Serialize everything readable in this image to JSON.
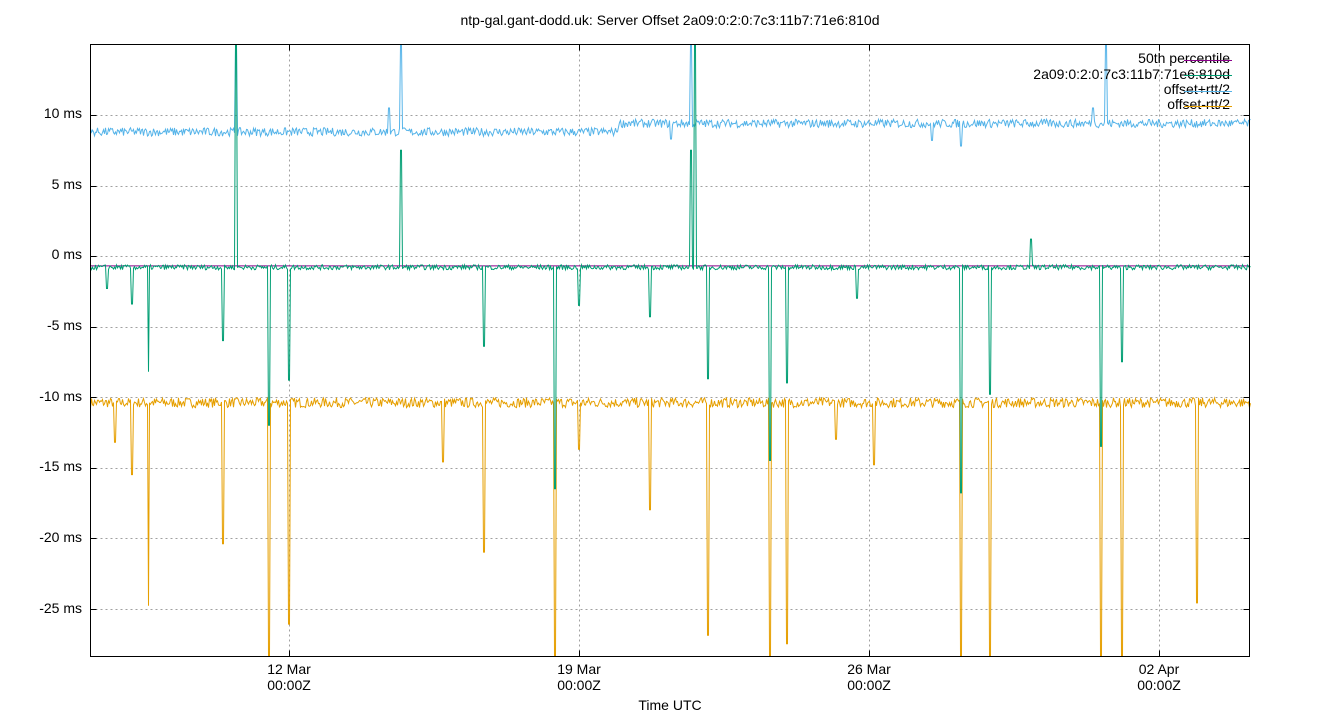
{
  "title": "ntp-gal.gant-dodd.uk: Server Offset 2a09:0:2:0:7c3:11b7:71e6:810d",
  "chart_data": {
    "type": "line",
    "title": "ntp-gal.gant-dodd.uk: Server Offset 2a09:0:2:0:7c3:11b7:71e6:810d",
    "xlabel": "Time UTC",
    "ylabel": "",
    "ylim": [
      -28.4,
      15.0
    ],
    "xlim": [
      "07 Mar ~05:00Z",
      "04 Apr ~05:00Z"
    ],
    "grid": true,
    "legend_position": "top-right",
    "y_ticks": [
      "10 ms",
      "5 ms",
      "0 ms",
      "-5 ms",
      "-10 ms",
      "-15 ms",
      "-20 ms",
      "-25 ms"
    ],
    "y_tick_values": [
      10,
      5,
      0,
      -5,
      -10,
      -15,
      -20,
      -25
    ],
    "x_ticks": [
      {
        "line1": "12 Mar",
        "line2": "00:00Z"
      },
      {
        "line1": "19 Mar",
        "line2": "00:00Z"
      },
      {
        "line1": "26 Mar",
        "line2": "00:00Z"
      },
      {
        "line1": "02 Apr",
        "line2": "00:00Z"
      }
    ],
    "series": [
      {
        "name": "50th percentile",
        "color": "#8b008b",
        "kind": "constant",
        "value": -0.7
      },
      {
        "name": "2a09:0:2:0:7c3:11b7:71e6:810d",
        "color": "#009e73",
        "baseline": -0.8,
        "points_day_offset_ms": [
          [
            0.0,
            -0.8
          ],
          [
            0.4,
            -2.3
          ],
          [
            1.0,
            -3.4
          ],
          [
            1.4,
            -8.2
          ],
          [
            3.2,
            -6.0
          ],
          [
            3.5,
            15.0
          ],
          [
            4.3,
            -12.0
          ],
          [
            4.8,
            -8.8
          ],
          [
            7.5,
            7.5
          ],
          [
            9.5,
            -6.4
          ],
          [
            11.2,
            -16.5
          ],
          [
            11.8,
            -3.5
          ],
          [
            13.5,
            -4.3
          ],
          [
            14.5,
            7.5
          ],
          [
            14.6,
            15.0
          ],
          [
            14.9,
            -8.7
          ],
          [
            16.4,
            -14.5
          ],
          [
            16.8,
            -9.0
          ],
          [
            18.5,
            -3.0
          ],
          [
            21.0,
            -16.8
          ],
          [
            21.7,
            -9.8
          ],
          [
            22.7,
            1.2
          ],
          [
            24.4,
            -13.5
          ],
          [
            24.9,
            -7.5
          ],
          [
            28.0,
            -0.7
          ]
        ]
      },
      {
        "name": "offset+rtt/2",
        "color": "#56b4e9",
        "baseline_start": 8.8,
        "baseline_end": 9.4,
        "points_day_offset_ms": [
          [
            0.0,
            8.8
          ],
          [
            3.5,
            15.0
          ],
          [
            7.2,
            10.5
          ],
          [
            7.5,
            15.0
          ],
          [
            12.7,
            8.8
          ],
          [
            13.0,
            9.5
          ],
          [
            14.0,
            8.3
          ],
          [
            14.5,
            15.0
          ],
          [
            20.3,
            8.2
          ],
          [
            21.0,
            7.8
          ],
          [
            24.2,
            10.5
          ],
          [
            24.5,
            15.0
          ],
          [
            28.0,
            9.4
          ]
        ]
      },
      {
        "name": "offset-rtt/2",
        "color": "#e69f00",
        "baseline": -10.4,
        "points_day_offset_ms": [
          [
            0.0,
            -10.4
          ],
          [
            0.6,
            -13.2
          ],
          [
            1.0,
            -15.5
          ],
          [
            1.4,
            -24.8
          ],
          [
            3.2,
            -20.4
          ],
          [
            4.3,
            -28.4
          ],
          [
            4.8,
            -26.1
          ],
          [
            8.5,
            -14.6
          ],
          [
            9.5,
            -21.0
          ],
          [
            11.2,
            -28.4
          ],
          [
            11.8,
            -13.7
          ],
          [
            13.5,
            -18.0
          ],
          [
            14.9,
            -26.9
          ],
          [
            16.4,
            -28.4
          ],
          [
            16.8,
            -27.5
          ],
          [
            18.0,
            -13.0
          ],
          [
            18.9,
            -14.8
          ],
          [
            21.0,
            -28.4
          ],
          [
            21.7,
            -28.4
          ],
          [
            24.4,
            -28.4
          ],
          [
            24.9,
            -28.4
          ],
          [
            26.7,
            -24.6
          ],
          [
            28.0,
            -10.4
          ]
        ]
      }
    ]
  },
  "legend": [
    {
      "label": "50th percentile",
      "color": "#8b008b"
    },
    {
      "label": "2a09:0:2:0:7c3:11b7:71e6:810d",
      "color": "#009e73"
    },
    {
      "label": "offset+rtt/2",
      "color": "#56b4e9"
    },
    {
      "label": "offset-rtt/2",
      "color": "#e69f00"
    }
  ],
  "axes": {
    "xlabel": "Time UTC",
    "yticks": [
      "10 ms",
      "5 ms",
      "0 ms",
      "-5 ms",
      "-10 ms",
      "-15 ms",
      "-20 ms",
      "-25 ms"
    ],
    "xticks": [
      {
        "line1": "12 Mar",
        "line2": "00:00Z"
      },
      {
        "line1": "19 Mar",
        "line2": "00:00Z"
      },
      {
        "line1": "26 Mar",
        "line2": "00:00Z"
      },
      {
        "line1": "02 Apr",
        "line2": "00:00Z"
      }
    ]
  }
}
